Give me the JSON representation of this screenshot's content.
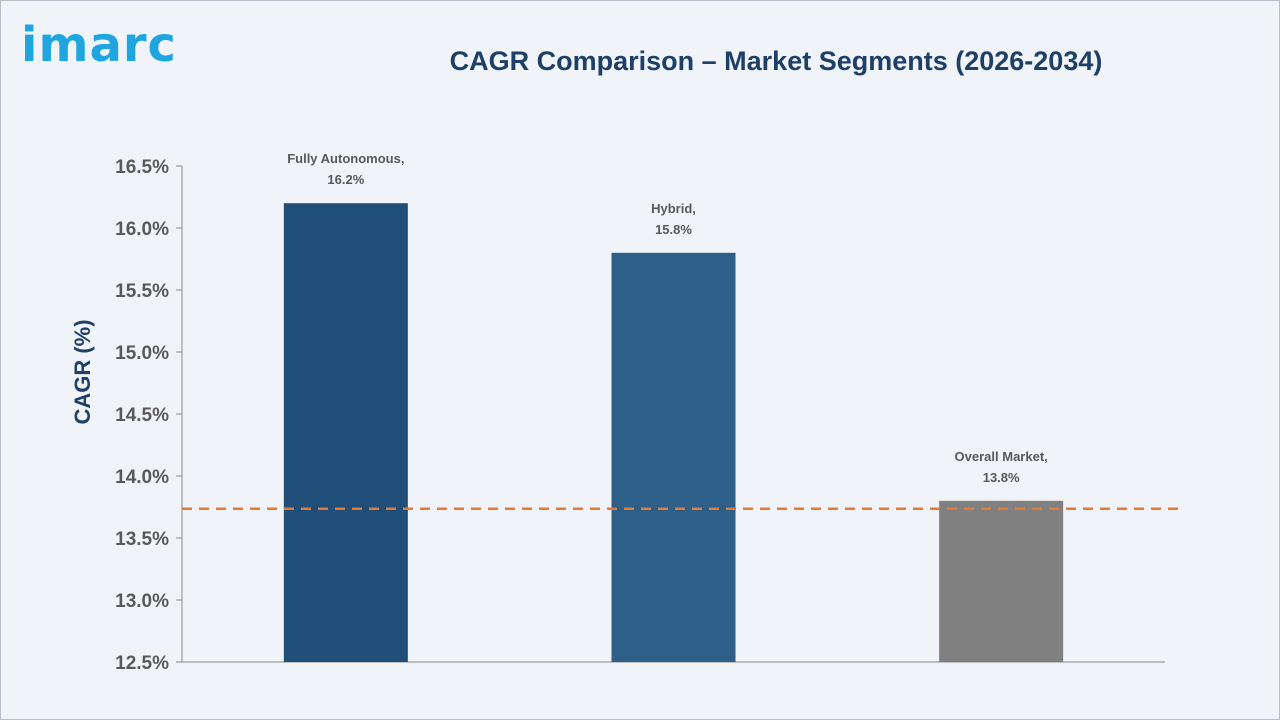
{
  "logo": {
    "text": "imarc"
  },
  "title": "CAGR Comparison – Market Segments (2026-2034)",
  "colors": {
    "logo": "#1fa6e0",
    "title": "#1e3f66",
    "axis_text": "#595959",
    "reference_line": "#e07b39",
    "background": "#f0f3f8"
  },
  "chart_data": {
    "type": "bar",
    "categories": [
      "Fully Autonomous",
      "Hybrid",
      "Overall Market"
    ],
    "values": [
      16.2,
      15.8,
      13.8
    ],
    "bar_colors": [
      "#1f4e79",
      "#2e5f88",
      "#808080"
    ],
    "data_labels": [
      [
        "Fully Autonomous,",
        "16.2%"
      ],
      [
        "Hybrid,",
        "15.8%"
      ],
      [
        "Overall Market,",
        "13.8%"
      ]
    ],
    "ylabel": "CAGR (%)",
    "ylim": [
      12.5,
      16.5
    ],
    "yticks": [
      12.5,
      13.0,
      13.5,
      14.0,
      14.5,
      15.0,
      15.5,
      16.0,
      16.5
    ],
    "ytick_labels": [
      "12.5%",
      "13.0%",
      "13.5%",
      "14.0%",
      "14.5%",
      "15.0%",
      "15.5%",
      "16.0%",
      "16.5%"
    ],
    "reference_line": {
      "value": 13.8,
      "style": "dashed"
    },
    "grid": false,
    "legend": false
  }
}
